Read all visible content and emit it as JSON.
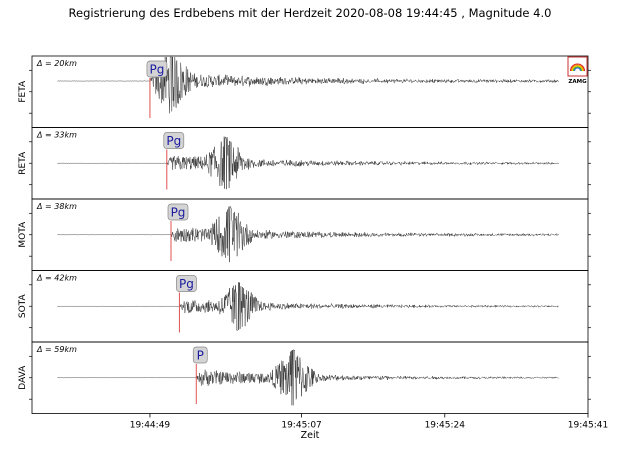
{
  "chart_data": {
    "type": "line",
    "title": "Registrierung des Erdbebens mit der Herdzeit 2020-08-08 19:44:45 , Magnitude 4.0",
    "xlabel": "Zeit",
    "x_ticks": [
      "19:44:49",
      "19:45:07",
      "19:45:24",
      "19:45:41"
    ],
    "x_tick_seconds": [
      4,
      22,
      39,
      56
    ],
    "x_range_seconds": [
      -10,
      56
    ],
    "origin_time": "2020-08-08 19:44:45",
    "magnitude": 4.0,
    "panels": [
      {
        "station": "FETA",
        "distance": "Δ = 20km",
        "phase": "Pg",
        "phase_time_s": 4.0,
        "amplitude": 0.9,
        "peak_time_s": 6.5,
        "noise": 0.04
      },
      {
        "station": "RETA",
        "distance": "Δ = 33km",
        "phase": "Pg",
        "phase_time_s": 6.0,
        "amplitude": 0.75,
        "peak_time_s": 13.0,
        "noise": 0.03
      },
      {
        "station": "MOTA",
        "distance": "Δ = 38km",
        "phase": "Pg",
        "phase_time_s": 6.5,
        "amplitude": 0.8,
        "peak_time_s": 13.5,
        "noise": 0.03
      },
      {
        "station": "SOTA",
        "distance": "Δ = 42km",
        "phase": "Pg",
        "phase_time_s": 7.5,
        "amplitude": 0.7,
        "peak_time_s": 14.5,
        "noise": 0.02
      },
      {
        "station": "DAVA",
        "distance": "Δ = 59km",
        "phase": "P",
        "phase_time_s": 9.5,
        "amplitude": 0.8,
        "peak_time_s": 21.0,
        "noise": 0.02
      }
    ],
    "logo_text": "ZAMG",
    "colors": {
      "trace": "#222222",
      "pick_line": "#e05050",
      "phase_label": "#1a1aa0",
      "pick_box": "#d4d4d4"
    }
  }
}
